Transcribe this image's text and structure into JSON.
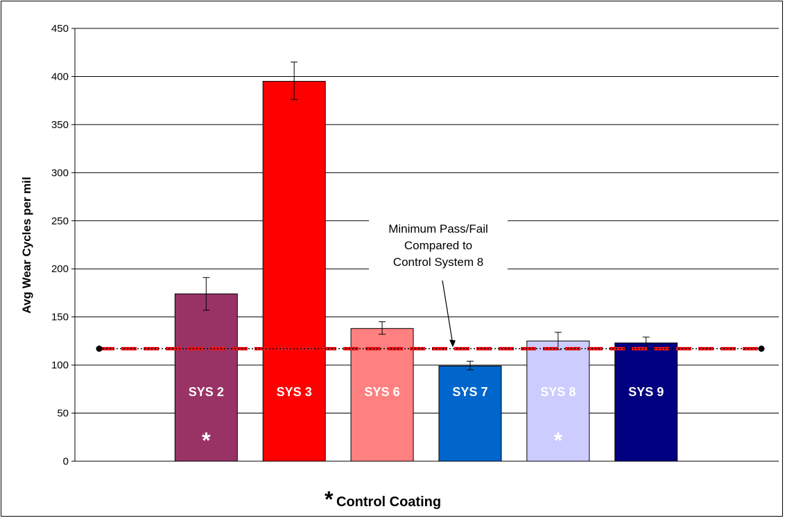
{
  "chart_data": {
    "type": "bar",
    "categories": [
      "SYS 2",
      "SYS 3",
      "SYS 6",
      "SYS 7",
      "SYS 8",
      "SYS 9"
    ],
    "values": [
      174,
      395,
      138,
      99,
      125,
      123
    ],
    "errors": [
      [
        157,
        191
      ],
      [
        376,
        415
      ],
      [
        132,
        145
      ],
      [
        95,
        104
      ],
      [
        116,
        134
      ],
      [
        117,
        129
      ]
    ],
    "colors": [
      "#993366",
      "#ff0000",
      "#ff8080",
      "#0066cc",
      "#ccccff",
      "#000080"
    ],
    "label_colors": [
      "#ffffff",
      "#ffffff",
      "#ffffff",
      "#ffffff",
      "#ffffff",
      "#ffffff"
    ],
    "control_marker": [
      true,
      false,
      false,
      false,
      true,
      false
    ],
    "control_marker_symbol": "*",
    "ylabel": "Avg Wear Cycles per mil",
    "ylim": [
      0,
      450
    ],
    "yticks": [
      0,
      50,
      100,
      150,
      200,
      250,
      300,
      350,
      400,
      450
    ],
    "grid": true,
    "pass_fail_threshold": 117,
    "threshold_color": "#e8141a",
    "annotation": [
      "Minimum Pass/Fail",
      "Compared to",
      "Control System 8"
    ],
    "footnote": {
      "symbol": "*",
      "text": "Control Coating"
    }
  }
}
